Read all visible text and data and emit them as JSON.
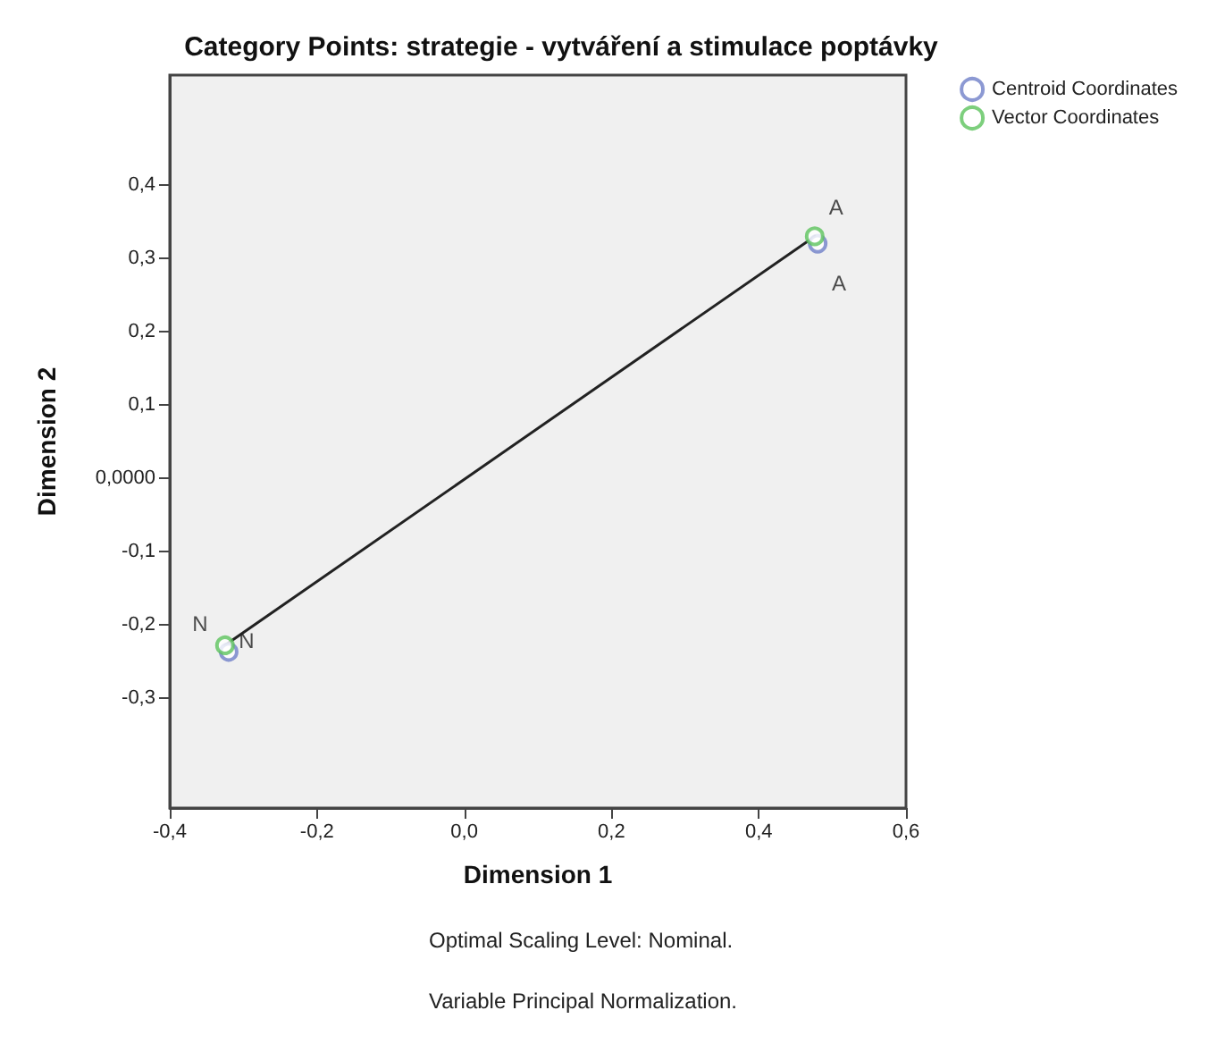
{
  "chart_data": {
    "type": "scatter",
    "title": "Category Points: strategie - vytváření a stimulace poptávky",
    "xlabel": "Dimension 1",
    "ylabel": "Dimension 2",
    "series": [
      {
        "name": "Centroid Coordinates",
        "color": "#6f7fc8",
        "x": [
          0.48,
          -0.32
        ],
        "values": [
          0.32,
          -0.237
        ]
      },
      {
        "name": "Vector Coordinates",
        "color": "#5cc35c",
        "x": [
          0.476,
          -0.325
        ],
        "values": [
          0.33,
          -0.228
        ]
      },
      {
        "type": "line",
        "color": "#222222",
        "marker": "none",
        "x": [
          -0.325,
          0.476
        ],
        "values": [
          -0.228,
          0.33
        ]
      }
    ],
    "xlim": [
      -0.4,
      0.6
    ],
    "xticks": [
      {
        "value": -0.4,
        "label": "-0,4"
      },
      {
        "value": -0.2,
        "label": "-0,2"
      },
      {
        "value": 0,
        "label": "0,0"
      },
      {
        "value": 0.2,
        "label": "0,2"
      },
      {
        "value": 0.4,
        "label": "0,4"
      },
      {
        "value": 0.6,
        "label": "0,6"
      }
    ],
    "ylim": [
      -0.45,
      0.55
    ],
    "yticks": [
      {
        "value": -0.3,
        "label": "-0,3"
      },
      {
        "value": -0.2,
        "label": "-0,2"
      },
      {
        "value": -0.1,
        "label": "-0,1"
      },
      {
        "value": 0,
        "label": "0,0000"
      },
      {
        "value": 0.1,
        "label": "0,1"
      },
      {
        "value": 0.2,
        "label": "0,2"
      },
      {
        "value": 0.3,
        "label": "0,3"
      },
      {
        "value": 0.4,
        "label": "0,4"
      }
    ],
    "annotations": [
      {
        "text": "A",
        "x": 0.476,
        "y": 0.33
      },
      {
        "text": "A",
        "x": 0.48,
        "y": 0.32
      },
      {
        "text": "N",
        "x": -0.325,
        "y": -0.228
      },
      {
        "text": "N",
        "x": -0.32,
        "y": -0.237
      },
      "Optimal Scaling Level: Nominal.",
      "Variable Principal Normalization."
    ],
    "grid": false,
    "legend": "top right",
    "marker": "circle",
    "line_style": "solid"
  }
}
